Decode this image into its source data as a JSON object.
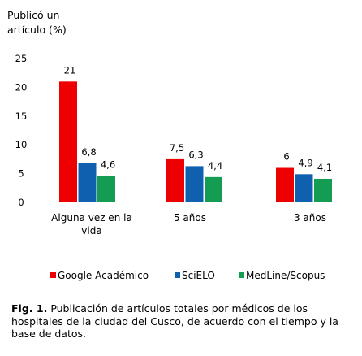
{
  "chart_data": {
    "type": "bar",
    "ylabel": "Publicó un artículo (%)",
    "ylim": [
      0,
      25
    ],
    "yticks": [
      0,
      5,
      10,
      15,
      20,
      25
    ],
    "grid": false,
    "legend_position": "bottom",
    "categories": [
      "Alguna vez en la vida",
      "5 años",
      "3 años"
    ],
    "series": [
      {
        "name": "Google Académico",
        "color": "#ee0000",
        "values": [
          21,
          7.5,
          6
        ],
        "labels": [
          "21",
          "7,5",
          "6"
        ]
      },
      {
        "name": "SciELO",
        "color": "#1060b0",
        "values": [
          6.8,
          6.3,
          4.9
        ],
        "labels": [
          "6,8",
          "6,3",
          "4,9"
        ]
      },
      {
        "name": "MedLine/Scopus",
        "color": "#139c52",
        "values": [
          4.6,
          4.4,
          4.1
        ],
        "labels": [
          "4,6",
          "4,4",
          "4,1"
        ]
      }
    ]
  },
  "caption": {
    "label": "Fig. 1.",
    "text": "Publicación de artículos totales por médicos de los hospitales de la ciudad del Cusco, de acuerdo con el tiempo y la base de datos."
  }
}
